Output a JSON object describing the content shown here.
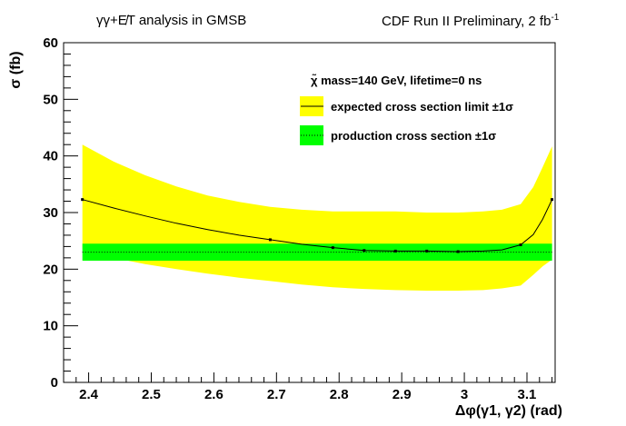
{
  "chart_data": {
    "type": "line",
    "title_left": "γγ+E̸T analysis in GMSB",
    "title_right": "CDF Run II Preliminary, 2 fb",
    "title_right_sup": "-1",
    "ylabel": "σ (fb)",
    "xlabel": "Δφ(γ1, γ2) (rad)",
    "xlim": [
      2.36,
      3.145
    ],
    "ylim": [
      0,
      60
    ],
    "xticks": [
      2.4,
      2.5,
      2.6,
      2.7,
      2.8,
      2.9,
      3.0,
      3.1
    ],
    "xtick_labels": [
      "2.4",
      "2.5",
      "2.6",
      "2.7",
      "2.8",
      "2.9",
      "3",
      "3.1"
    ],
    "yticks": [
      0,
      10,
      20,
      30,
      40,
      50,
      60
    ],
    "grid": false,
    "legend_placement": "top-right",
    "legend_header": "χ̃  mass=140 GeV, lifetime=0 ns",
    "legend": [
      {
        "label": "expected cross section limit ±1σ",
        "fill": "#ffff00",
        "line": "#000000",
        "style": "solid"
      },
      {
        "label": "production cross section ±1σ",
        "fill": "#00ff00",
        "line": "#000000",
        "style": "dotted"
      }
    ],
    "series": [
      {
        "name": "expected cross section limit",
        "x": [
          2.39,
          2.44,
          2.49,
          2.54,
          2.59,
          2.64,
          2.69,
          2.74,
          2.79,
          2.84,
          2.89,
          2.94,
          2.99,
          3.03,
          3.06,
          3.09,
          3.11,
          3.125,
          3.14
        ],
        "y": [
          32.3,
          30.8,
          29.4,
          28.1,
          27.0,
          26.0,
          25.2,
          24.4,
          23.8,
          23.3,
          23.2,
          23.2,
          23.1,
          23.2,
          23.4,
          24.3,
          26.1,
          28.8,
          32.3
        ],
        "band_upper": [
          42.0,
          39.0,
          36.6,
          34.6,
          33.0,
          31.9,
          31.0,
          30.5,
          30.2,
          30.2,
          30.2,
          30.0,
          30.0,
          30.2,
          30.5,
          31.5,
          34.5,
          38.0,
          41.7
        ],
        "band_lower": [
          23.5,
          22.0,
          20.9,
          20.0,
          19.2,
          18.5,
          17.9,
          17.3,
          16.8,
          16.5,
          16.3,
          16.2,
          16.2,
          16.3,
          16.6,
          17.1,
          19.0,
          20.5,
          21.7
        ]
      },
      {
        "name": "production cross section",
        "x": [
          2.39,
          3.14
        ],
        "y": [
          23.0,
          23.0
        ],
        "band_upper": [
          24.5,
          24.5
        ],
        "band_lower": [
          21.5,
          21.5
        ]
      }
    ],
    "markers_x": [
      2.39,
      2.69,
      2.79,
      2.84,
      2.89,
      2.94,
      2.99,
      3.09,
      3.14
    ],
    "markers_y": [
      32.3,
      25.2,
      23.8,
      23.3,
      23.2,
      23.2,
      23.1,
      24.3,
      32.3
    ],
    "colors": {
      "expected_band": "#ffff00",
      "production_band": "#00ff00",
      "axis": "#000000"
    }
  }
}
